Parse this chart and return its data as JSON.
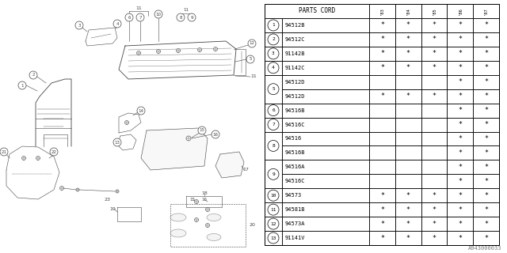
{
  "table_header": "PARTS CORD",
  "year_cols": [
    "83",
    "84",
    "85",
    "86",
    "87"
  ],
  "rows": [
    {
      "num": "1",
      "part": "94512B",
      "marks": [
        true,
        true,
        true,
        true,
        true
      ],
      "group": null
    },
    {
      "num": "2",
      "part": "94512C",
      "marks": [
        true,
        true,
        true,
        true,
        true
      ],
      "group": null
    },
    {
      "num": "3",
      "part": "91142B",
      "marks": [
        true,
        true,
        true,
        true,
        true
      ],
      "group": null
    },
    {
      "num": "4",
      "part": "91142C",
      "marks": [
        true,
        true,
        true,
        true,
        true
      ],
      "group": null
    },
    {
      "num": "5",
      "part": "94512D",
      "marks": [
        false,
        false,
        false,
        true,
        true
      ],
      "group": "5_top"
    },
    {
      "num": "5",
      "part": "94512D",
      "marks": [
        true,
        true,
        true,
        true,
        true
      ],
      "group": "5_bot"
    },
    {
      "num": "6",
      "part": "94516B",
      "marks": [
        false,
        false,
        false,
        true,
        true
      ],
      "group": null
    },
    {
      "num": "7",
      "part": "94516C",
      "marks": [
        false,
        false,
        false,
        true,
        true
      ],
      "group": null
    },
    {
      "num": "8",
      "part": "94516",
      "marks": [
        false,
        false,
        false,
        true,
        true
      ],
      "group": "8_top"
    },
    {
      "num": "8",
      "part": "94516B",
      "marks": [
        false,
        false,
        false,
        true,
        true
      ],
      "group": "8_bot"
    },
    {
      "num": "9",
      "part": "94516A",
      "marks": [
        false,
        false,
        false,
        true,
        true
      ],
      "group": "9_top"
    },
    {
      "num": "9",
      "part": "94516C",
      "marks": [
        false,
        false,
        false,
        true,
        true
      ],
      "group": "9_bot"
    },
    {
      "num": "10",
      "part": "94573",
      "marks": [
        true,
        true,
        true,
        true,
        true
      ],
      "group": null
    },
    {
      "num": "11",
      "part": "94581B",
      "marks": [
        true,
        true,
        true,
        true,
        true
      ],
      "group": null
    },
    {
      "num": "12",
      "part": "94573A",
      "marks": [
        true,
        true,
        true,
        true,
        true
      ],
      "group": null
    },
    {
      "num": "13",
      "part": "91141V",
      "marks": [
        true,
        true,
        true,
        true,
        true
      ],
      "group": null
    }
  ],
  "footer": "A943000033",
  "bg_color": "#ffffff",
  "line_color": "#000000"
}
